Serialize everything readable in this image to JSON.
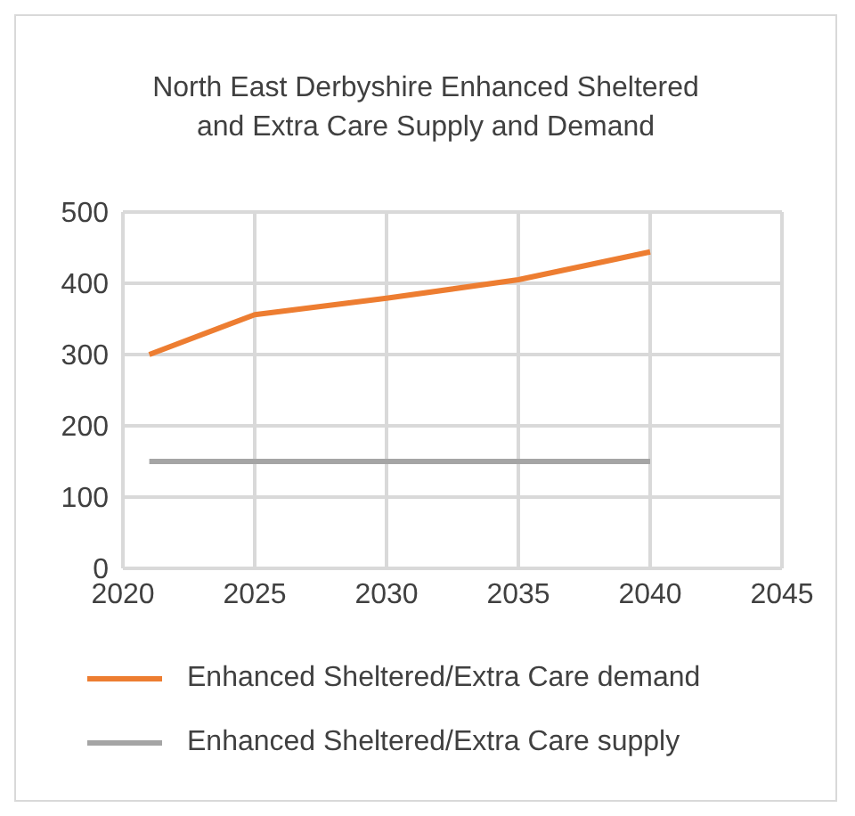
{
  "chart_data": {
    "type": "line",
    "title": "North East Derbyshire Enhanced Sheltered and Extra Care Supply and Demand",
    "x": [
      2021,
      2025,
      2030,
      2035,
      2040
    ],
    "series": [
      {
        "name": "Enhanced Sheltered/Extra Care demand",
        "color": "#ed7d31",
        "values": [
          300,
          356,
          379,
          405,
          444
        ]
      },
      {
        "name": "Enhanced Sheltered/Extra Care supply",
        "color": "#a5a5a5",
        "values": [
          150,
          150,
          150,
          150,
          150
        ]
      }
    ],
    "xlim": [
      2020,
      2045
    ],
    "xticks": [
      2020,
      2025,
      2030,
      2035,
      2040,
      2045
    ],
    "ylim": [
      0,
      500
    ],
    "yticks": [
      0,
      100,
      200,
      300,
      400,
      500
    ],
    "grid": true,
    "legend": "bottom",
    "marker": "none",
    "line_style": "solid"
  }
}
